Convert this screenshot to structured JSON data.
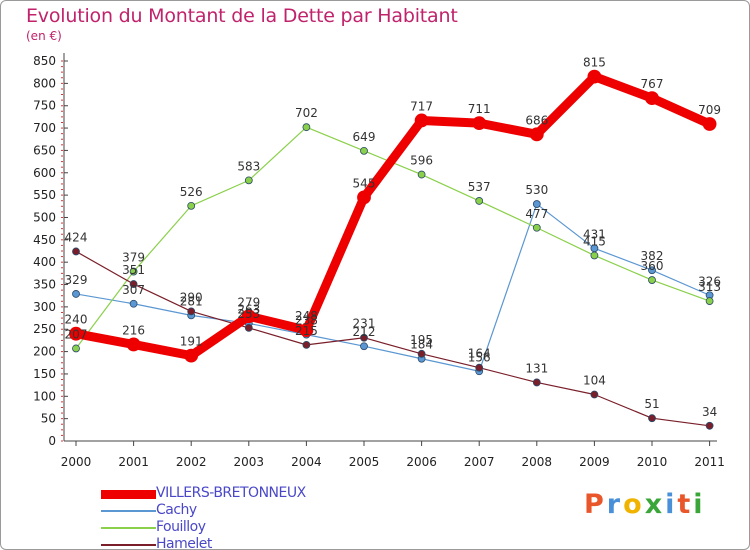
{
  "title": "Evolution du Montant de la Dette par Habitant",
  "subtitle": "(en €)",
  "logo": {
    "text": "Proxiti",
    "colors": [
      "#e8562a",
      "#4a90d9",
      "#f0b400",
      "#3aa63a",
      "#4a90d9",
      "#e8562a",
      "#3aa63a"
    ]
  },
  "chart_data": {
    "type": "line",
    "x": [
      "2000",
      "2001",
      "2002",
      "2003",
      "2004",
      "2005",
      "2006",
      "2007",
      "2008",
      "2009",
      "2010",
      "2011"
    ],
    "ylim": [
      0,
      850
    ],
    "yticks": [
      0,
      50,
      100,
      150,
      200,
      250,
      300,
      350,
      400,
      450,
      500,
      550,
      600,
      650,
      700,
      750,
      800,
      850
    ],
    "grid": false,
    "legend_position": "bottom-left",
    "series": [
      {
        "name": "VILLERS-BRETONNEUX",
        "color": "#ee0000",
        "width": 9,
        "values": [
          240,
          216,
          191,
          279,
          248,
          545,
          717,
          711,
          686,
          815,
          767,
          709
        ]
      },
      {
        "name": "Cachy",
        "color": "#5b97d2",
        "width": 1.2,
        "values": [
          329,
          307,
          281,
          263,
          238,
          212,
          184,
          156,
          530,
          431,
          382,
          326
        ]
      },
      {
        "name": "Fouilloy",
        "color": "#8ad04a",
        "width": 1.2,
        "values": [
          207,
          379,
          526,
          583,
          702,
          649,
          596,
          537,
          477,
          415,
          360,
          313
        ]
      },
      {
        "name": "Hamelet",
        "color": "#7a1f2a",
        "width": 1.2,
        "values": [
          424,
          351,
          290,
          253,
          215,
          231,
          195,
          164,
          131,
          104,
          51,
          34
        ]
      }
    ]
  }
}
